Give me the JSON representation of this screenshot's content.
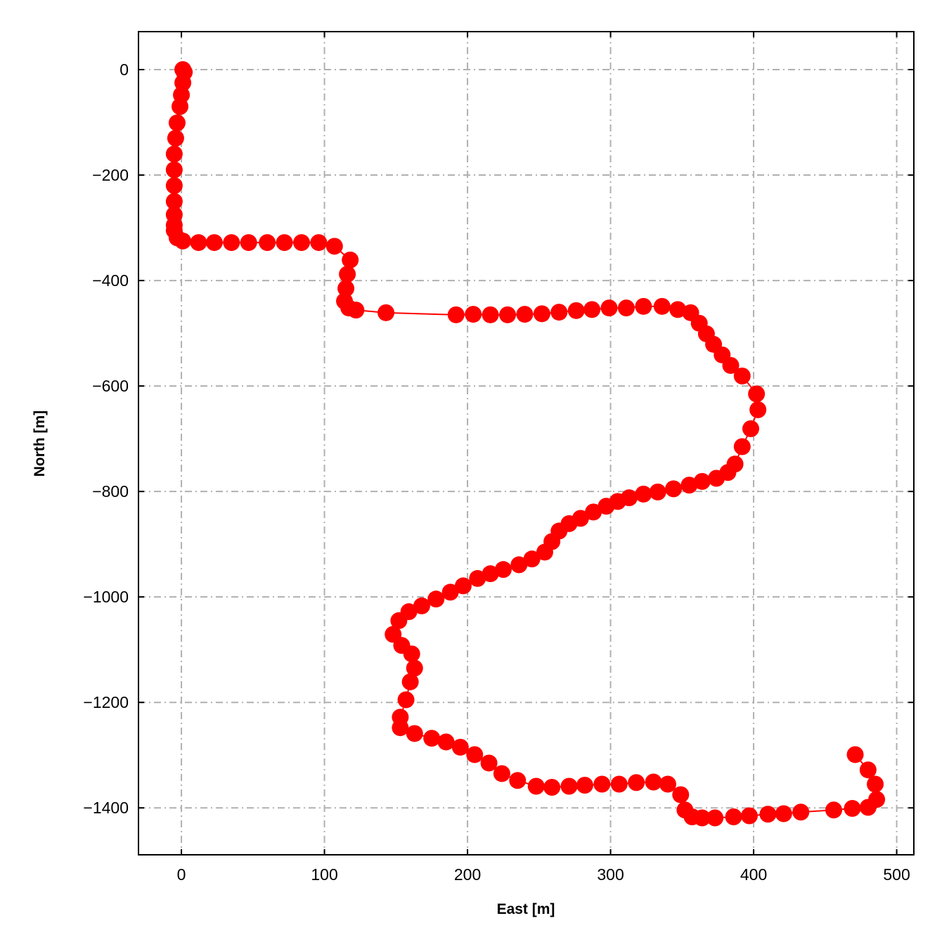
{
  "chart_data": {
    "type": "line",
    "title": "",
    "xlabel": "East [m]",
    "ylabel": "North [m]",
    "xlim": [
      -30,
      512
    ],
    "ylim": [
      -1489,
      72
    ],
    "xticks": [
      0,
      100,
      200,
      300,
      400,
      500
    ],
    "yticks": [
      0,
      -200,
      -400,
      -600,
      -800,
      -1000,
      -1200,
      -1400
    ],
    "grid": true,
    "grid_style": "dash-dot",
    "markers": "circle",
    "color": "#ff0000",
    "series": [
      {
        "x": [
          1,
          2,
          1,
          0,
          -1,
          -3,
          -4,
          -5,
          -5,
          -5,
          -5,
          -5,
          -5,
          -5,
          -3,
          1,
          12,
          23,
          35,
          47,
          60,
          72,
          84,
          96,
          107,
          118,
          116,
          115,
          114,
          117,
          122,
          143,
          192,
          204,
          216,
          228,
          240,
          252,
          264,
          276,
          287,
          299,
          311,
          323,
          336,
          347,
          356,
          362,
          367,
          372,
          378,
          384,
          392,
          402,
          403,
          398,
          392,
          387,
          382,
          374,
          364,
          355,
          344,
          333,
          323,
          313,
          305,
          297,
          288,
          279,
          271,
          264,
          259,
          254,
          245,
          236,
          225,
          216,
          207,
          197,
          188,
          178,
          168,
          159,
          152,
          148,
          154,
          161,
          163,
          160,
          157,
          153,
          153,
          163,
          175,
          185,
          195,
          205,
          215,
          224,
          235,
          248,
          259,
          271,
          282,
          294,
          306,
          318,
          330,
          340,
          349,
          352,
          357,
          364,
          373,
          386,
          397,
          410,
          421,
          433,
          456,
          469,
          480,
          486,
          485,
          480,
          471
        ],
        "y": [
          0,
          -5,
          -25,
          -48,
          -70,
          -101,
          -130,
          -160,
          -190,
          -220,
          -250,
          -275,
          -295,
          -305,
          -319,
          -325,
          -328,
          -328,
          -328,
          -328,
          -328,
          -328,
          -328,
          -328,
          -335,
          -361,
          -388,
          -415,
          -439,
          -452,
          -456,
          -461,
          -465,
          -464,
          -465,
          -465,
          -464,
          -463,
          -460,
          -457,
          -455,
          -452,
          -452,
          -449,
          -449,
          -455,
          -461,
          -481,
          -501,
          -521,
          -541,
          -561,
          -581,
          -615,
          -645,
          -681,
          -715,
          -748,
          -764,
          -775,
          -781,
          -788,
          -795,
          -801,
          -805,
          -812,
          -819,
          -828,
          -839,
          -851,
          -861,
          -875,
          -895,
          -915,
          -928,
          -939,
          -948,
          -956,
          -965,
          -979,
          -991,
          -1004,
          -1017,
          -1028,
          -1045,
          -1071,
          -1092,
          -1108,
          -1135,
          -1161,
          -1195,
          -1228,
          -1248,
          -1259,
          -1268,
          -1275,
          -1285,
          -1299,
          -1315,
          -1335,
          -1348,
          -1359,
          -1361,
          -1359,
          -1357,
          -1355,
          -1355,
          -1352,
          -1351,
          -1355,
          -1375,
          -1404,
          -1417,
          -1419,
          -1419,
          -1417,
          -1415,
          -1412,
          -1411,
          -1408,
          -1404,
          -1401,
          -1399,
          -1384,
          -1355,
          -1328,
          -1299
        ]
      }
    ]
  }
}
